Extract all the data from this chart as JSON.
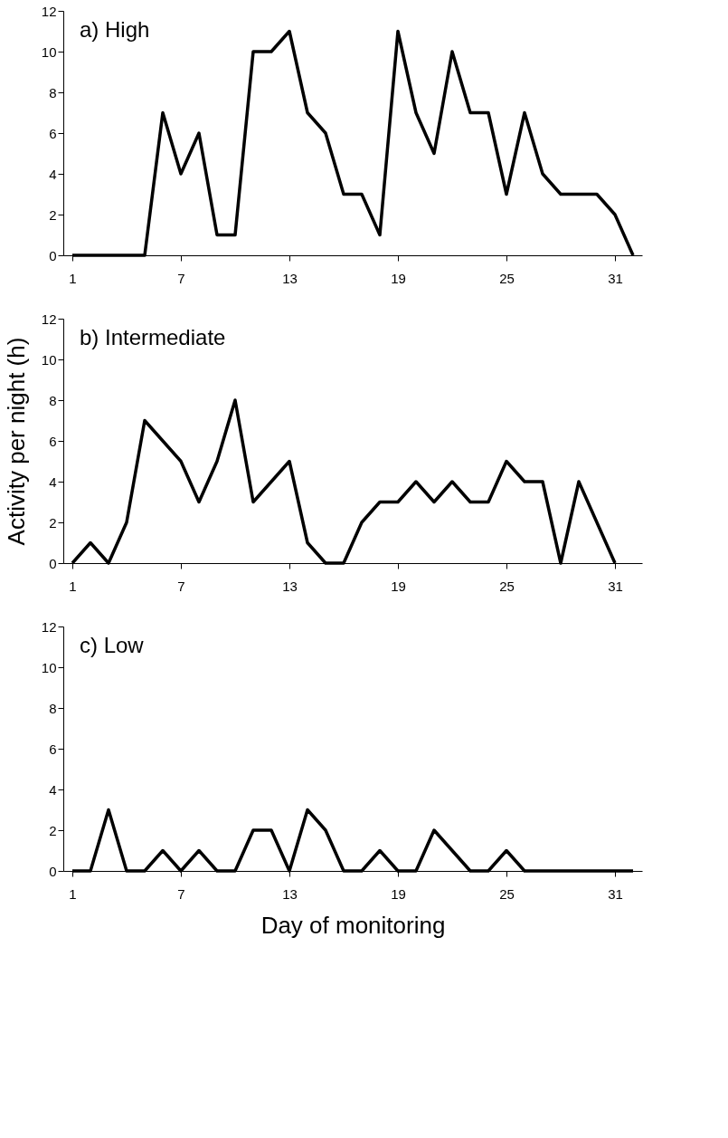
{
  "chart_data": [
    {
      "type": "line",
      "title": "a) High",
      "x": [
        1,
        2,
        3,
        4,
        5,
        6,
        7,
        8,
        9,
        10,
        11,
        12,
        13,
        14,
        15,
        16,
        17,
        18,
        19,
        20,
        21,
        22,
        23,
        24,
        25,
        26,
        27,
        28,
        29,
        30,
        31,
        32
      ],
      "series": [
        {
          "color": "#000000",
          "values": [
            0,
            0,
            0,
            0,
            0,
            7,
            4,
            6,
            1,
            1,
            10,
            10,
            11,
            7,
            6,
            3,
            3,
            1,
            11,
            7,
            5,
            10,
            7,
            7,
            3,
            7,
            4,
            3,
            3,
            3,
            2,
            0
          ]
        }
      ],
      "xlim": [
        0.5,
        32.5
      ],
      "xticks": [
        1,
        7,
        13,
        19,
        25,
        31
      ],
      "ylim": [
        0,
        12
      ],
      "yticks": [
        0,
        2,
        4,
        6,
        8,
        10,
        12
      ],
      "grid": false,
      "marker": "none",
      "line_style": "solid"
    },
    {
      "type": "line",
      "title": "b) Intermediate",
      "ylabel": "Activity per night (h)",
      "x": [
        1,
        2,
        3,
        4,
        5,
        6,
        7,
        8,
        9,
        10,
        11,
        12,
        13,
        14,
        15,
        16,
        17,
        18,
        19,
        20,
        21,
        22,
        23,
        24,
        25,
        26,
        27,
        28,
        29,
        30,
        31
      ],
      "series": [
        {
          "color": "#000000",
          "values": [
            0,
            1,
            0,
            2,
            7,
            6,
            5,
            3,
            5,
            8,
            3,
            4,
            5,
            1,
            0,
            0,
            2,
            3,
            3,
            4,
            3,
            4,
            3,
            3,
            5,
            4,
            4,
            0,
            4,
            2,
            0
          ]
        }
      ],
      "xlim": [
        0.5,
        32.5
      ],
      "xticks": [
        1,
        7,
        13,
        19,
        25,
        31
      ],
      "ylim": [
        0,
        12
      ],
      "yticks": [
        0,
        2,
        4,
        6,
        8,
        10,
        12
      ],
      "grid": false,
      "marker": "none",
      "line_style": "solid"
    },
    {
      "type": "line",
      "title": "c) Low",
      "xlabel": "Day of monitoring",
      "x": [
        1,
        2,
        3,
        4,
        5,
        6,
        7,
        8,
        9,
        10,
        11,
        12,
        13,
        14,
        15,
        16,
        17,
        18,
        19,
        20,
        21,
        22,
        23,
        24,
        25,
        26,
        27,
        28,
        29,
        30,
        31,
        32
      ],
      "series": [
        {
          "color": "#000000",
          "values": [
            0,
            0,
            3,
            0,
            0,
            1,
            0,
            1,
            0,
            0,
            2,
            2,
            0,
            3,
            2,
            0,
            0,
            1,
            0,
            0,
            2,
            1,
            0,
            0,
            1,
            0,
            0,
            0,
            0,
            0,
            0,
            0
          ]
        }
      ],
      "xlim": [
        0.5,
        32.5
      ],
      "xticks": [
        1,
        7,
        13,
        19,
        25,
        31
      ],
      "ylim": [
        0,
        12
      ],
      "yticks": [
        0,
        2,
        4,
        6,
        8,
        10,
        12
      ],
      "grid": false,
      "marker": "none",
      "line_style": "solid"
    }
  ]
}
